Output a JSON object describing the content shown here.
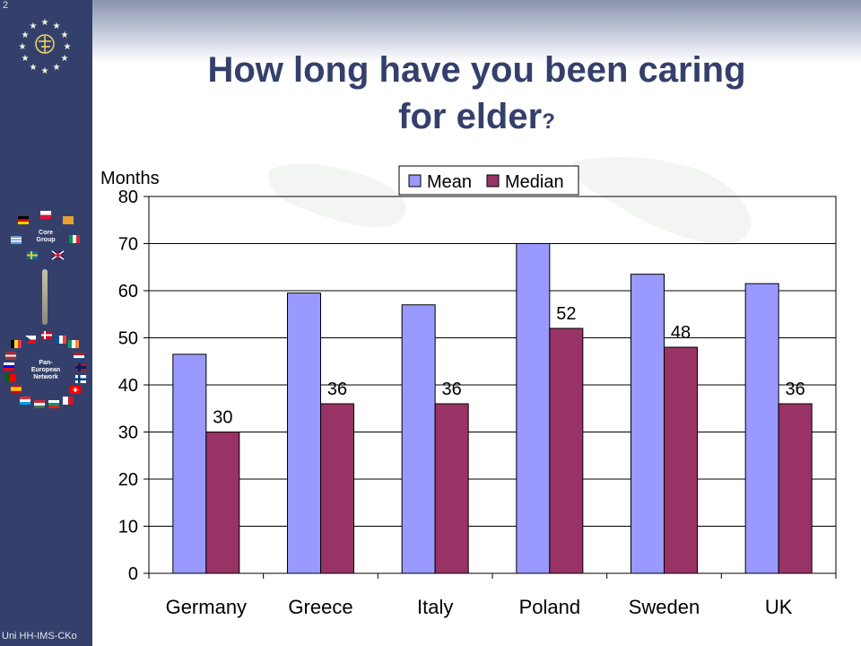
{
  "slide": {
    "number": "2",
    "footer": "Uni HH-IMS-CKo",
    "title_line1": "How long have you been caring",
    "title_line2": "for elder",
    "title_mark": "?"
  },
  "sidebar": {
    "core_group_line1": "Core",
    "core_group_line2": "Group",
    "network_line1": "Pan-",
    "network_line2": "European",
    "network_line3": "Network"
  },
  "chart_data": {
    "type": "bar",
    "title": "",
    "ylabel": "Months",
    "xlabel": "",
    "ylim": [
      0,
      80
    ],
    "yticks": [
      0,
      10,
      20,
      30,
      40,
      50,
      60,
      70,
      80
    ],
    "grid": true,
    "legend_position": "top",
    "categories": [
      "Germany",
      "Greece",
      "Italy",
      "Poland",
      "Sweden",
      "UK"
    ],
    "series": [
      {
        "name": "Mean",
        "color": "#9999ff",
        "values": [
          46.5,
          59.5,
          57,
          70,
          63.5,
          61.5
        ],
        "labels": [
          "",
          "",
          "",
          "",
          "",
          ""
        ]
      },
      {
        "name": "Median",
        "color": "#993366",
        "values": [
          30,
          36,
          36,
          52,
          48,
          36
        ],
        "labels": [
          "30",
          "36",
          "36",
          "52",
          "48",
          "36"
        ]
      }
    ]
  }
}
